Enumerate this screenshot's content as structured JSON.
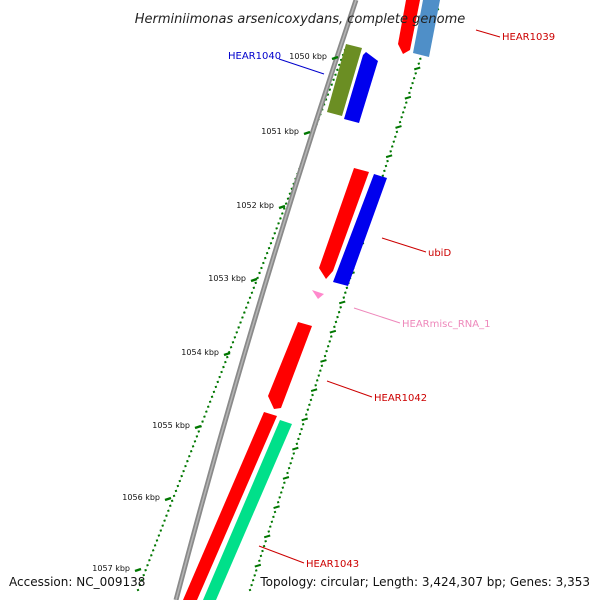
{
  "title": "Herminiimonas arsenicoxydans, complete genome",
  "footer": {
    "accession": "Accession: NC_009138",
    "summary": "Topology: circular; Length: 3,424,307 bp; Genes: 3,353"
  },
  "ticks": [
    "1050 kbp",
    "1051 kbp",
    "1052 kbp",
    "1053 kbp",
    "1054 kbp",
    "1055 kbp",
    "1056 kbp",
    "1057 kbp"
  ],
  "features": [
    {
      "name": "HEAR1039",
      "color": "#cc0000"
    },
    {
      "name": "HEAR1040",
      "color": "#0000cc"
    },
    {
      "name": "ubiD",
      "color": "#cc0000"
    },
    {
      "name": "HEARmisc_RNA_1",
      "color": "#ee88bb"
    },
    {
      "name": "HEAR1042",
      "color": "#cc0000"
    },
    {
      "name": "HEAR1043",
      "color": "#cc0000"
    }
  ],
  "colors": {
    "backbone": "#8a8a8a",
    "cds_forward": "#ff0000",
    "cds_reverse": "#0000ff",
    "gene_olive": "#6b8e23",
    "gene_steelblue": "#4682b4",
    "gene_green": "#00e08a",
    "misc_rna": "#ff99cc",
    "gc_tick": "#007700"
  }
}
